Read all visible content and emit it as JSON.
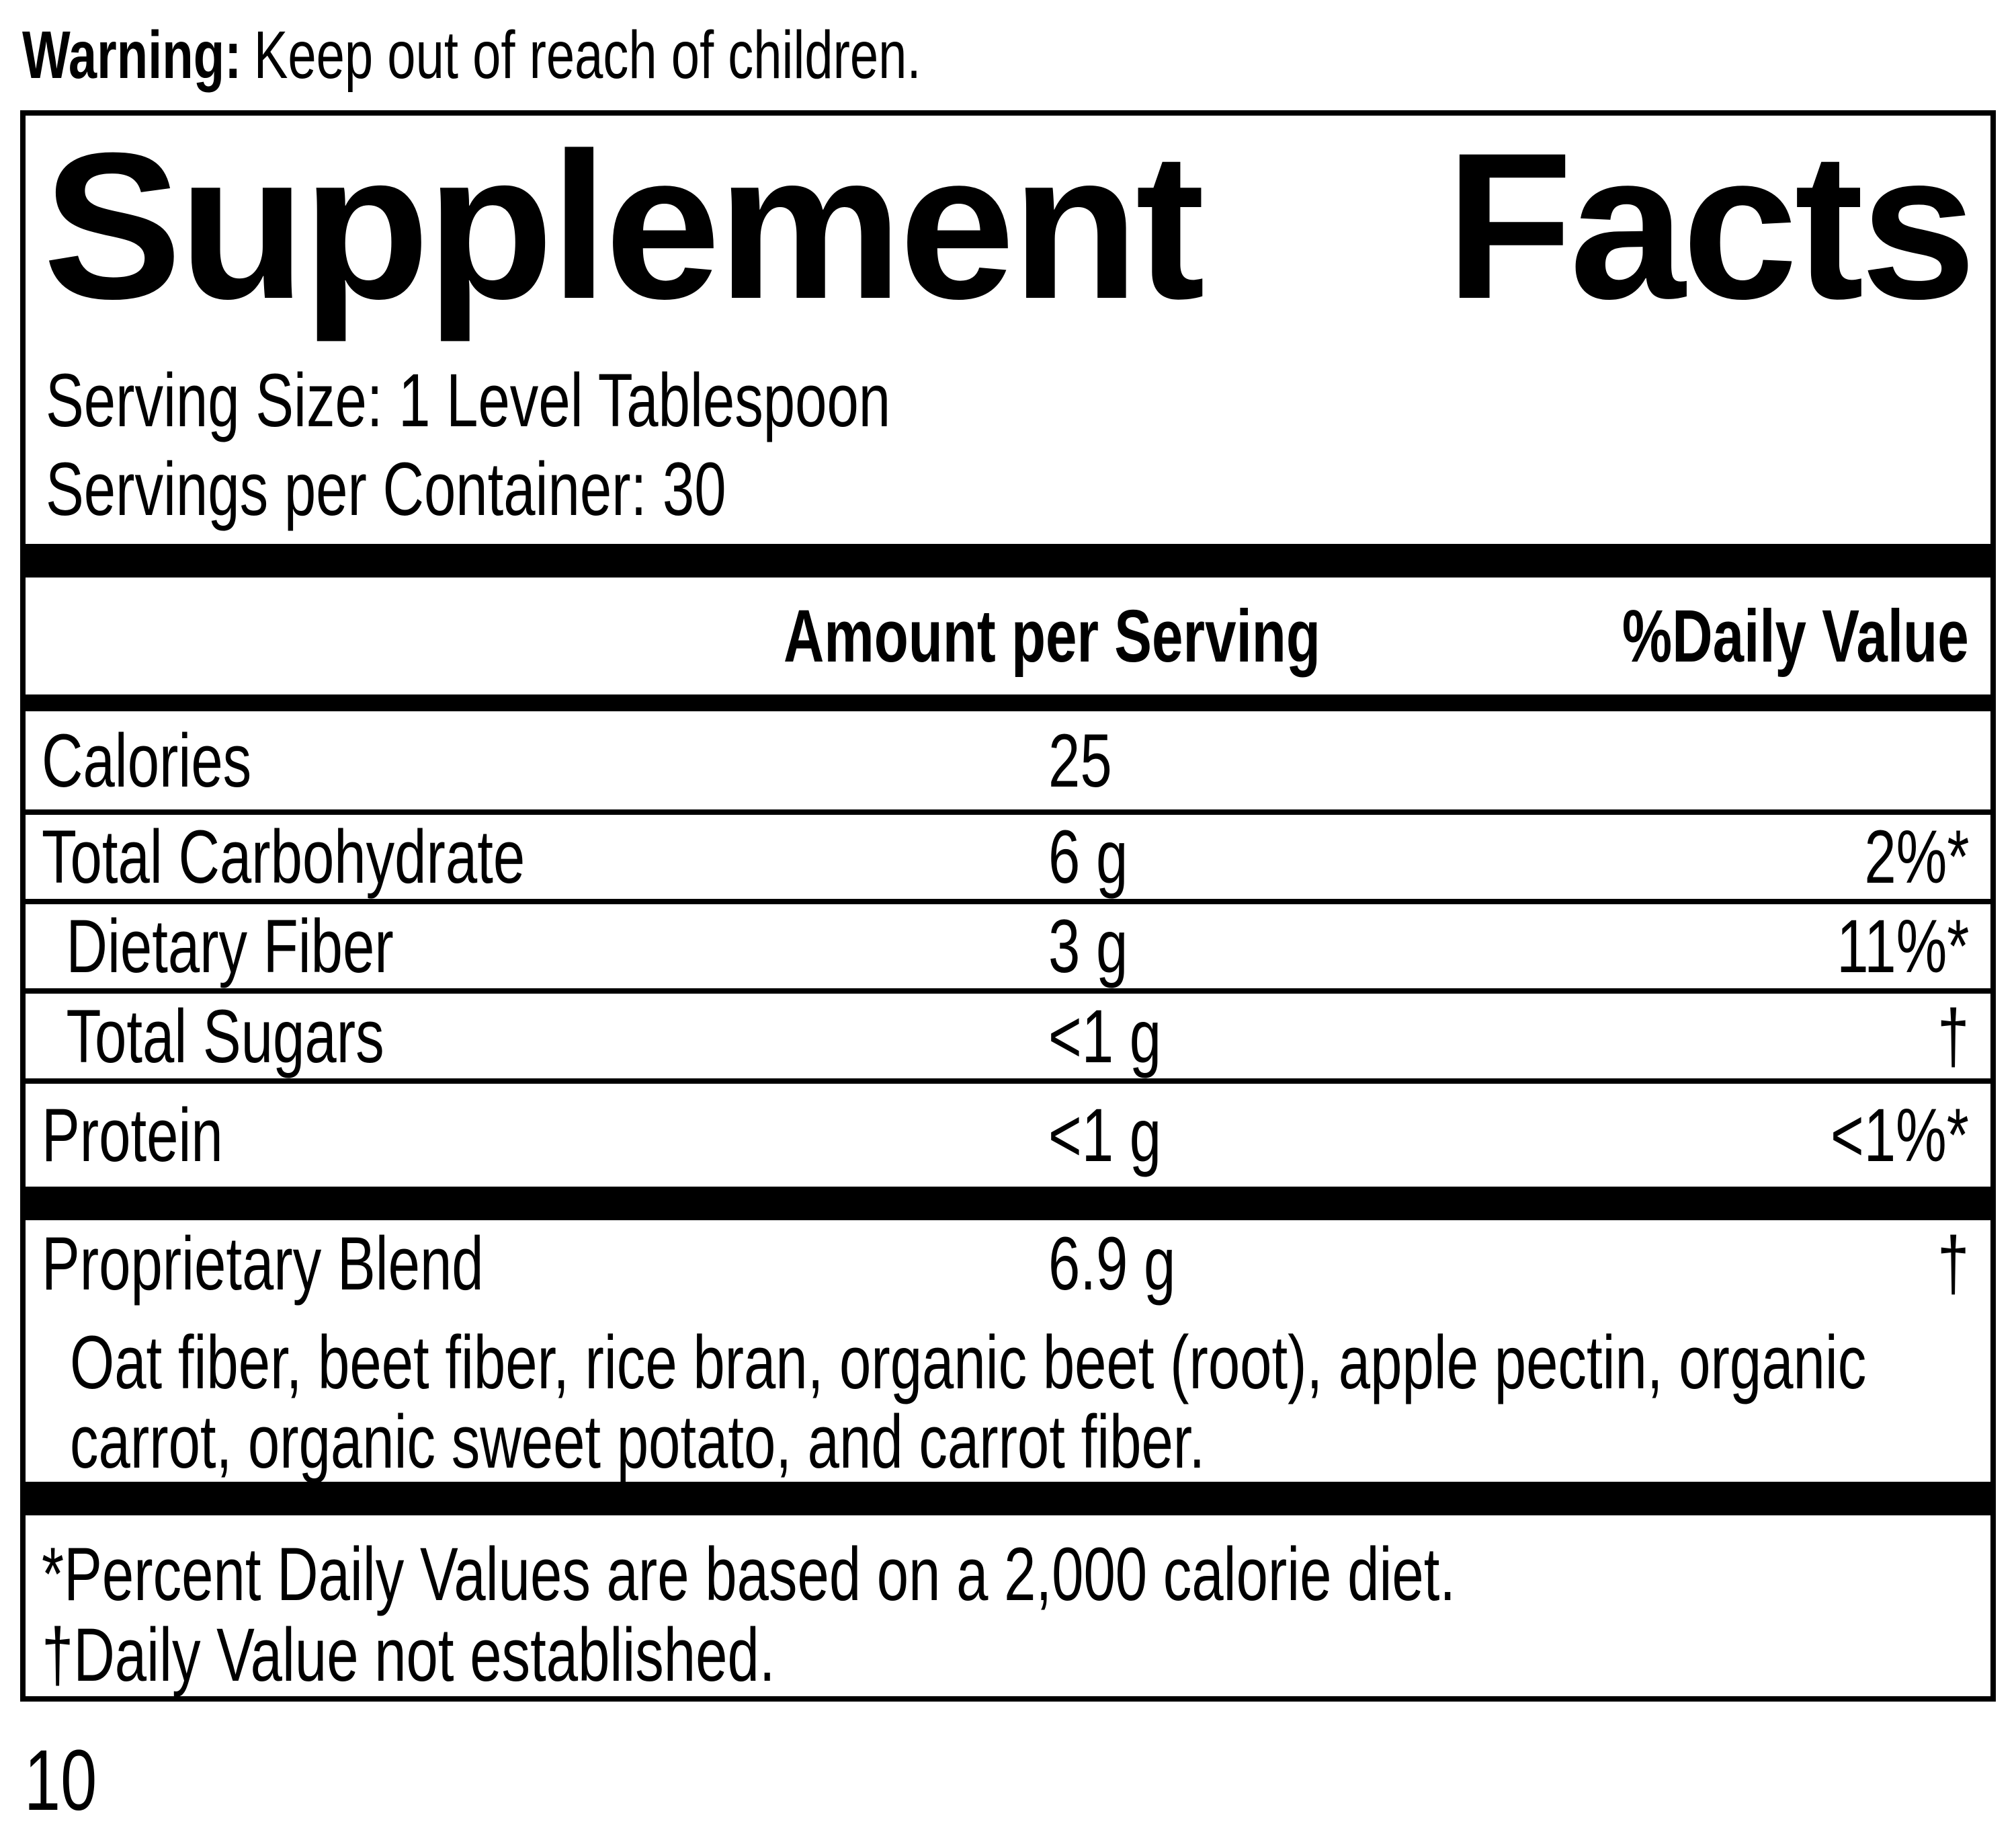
{
  "warning": {
    "label": "Warning:",
    "text": "Keep out of reach of children."
  },
  "panel": {
    "title": {
      "left": "Supplement",
      "right": "Facts"
    },
    "serving_size": "Serving Size: 1 Level Tablespoon",
    "servings_per_container": "Servings per Container: 30",
    "columns": {
      "amount": "Amount per Serving",
      "daily_value": "%Daily Value"
    },
    "rows": [
      {
        "label": "Calories",
        "amount": "25",
        "daily_value": ""
      },
      {
        "label": "Total Carbohydrate",
        "amount": "6 g",
        "daily_value": "2%*"
      },
      {
        "label": "Dietary Fiber",
        "amount": "3 g",
        "daily_value": "11%*"
      },
      {
        "label": "Total Sugars",
        "amount": "<1 g",
        "daily_value": "†"
      },
      {
        "label": "Protein",
        "amount": "<1 g",
        "daily_value": "<1%*"
      }
    ],
    "proprietary_blend": {
      "label": "Proprietary Blend",
      "amount": "6.9 g",
      "daily_value": "†",
      "description_lines": [
        "Oat fiber, beet fiber, rice bran, organic beet (root), apple pectin, organic",
        "carrot, organic sweet potato, and carrot fiber."
      ]
    },
    "footnotes": [
      "*Percent Daily Values are based on a 2,000 calorie diet.",
      "†Daily Value not established."
    ]
  },
  "page_number": "10",
  "colors": {
    "ink": "#000000",
    "background": "#ffffff"
  }
}
